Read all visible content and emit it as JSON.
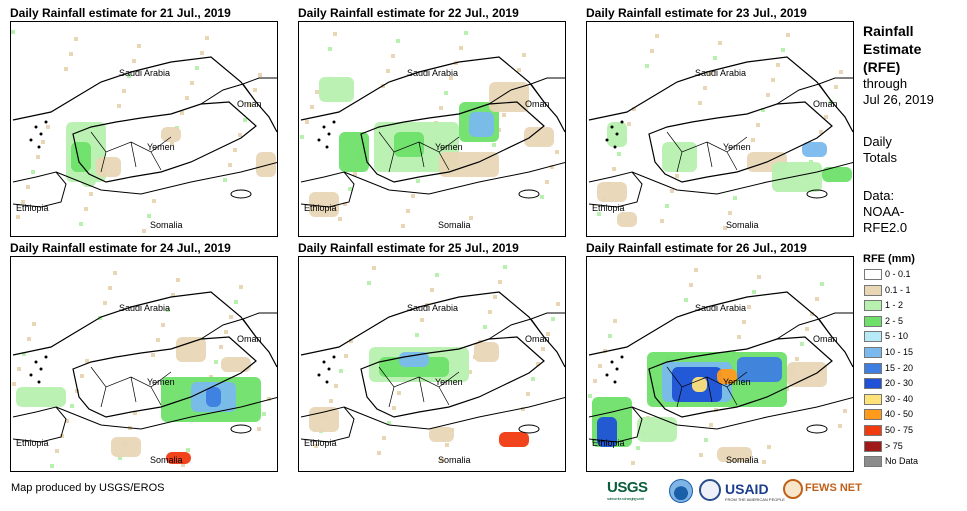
{
  "panels": [
    {
      "title": "Daily Rainfall estimate for 21 Jul., 2019",
      "rain_coverage": "light scattered over western Yemen highlands"
    },
    {
      "title": "Daily Rainfall estimate for 22 Jul., 2019",
      "rain_coverage": "widespread light-moderate over Yemen and southern Saudi Arabia"
    },
    {
      "title": "Daily Rainfall estimate for 23 Jul., 2019",
      "rain_coverage": "light over Yemen and eastern Yemen/Oman border"
    },
    {
      "title": "Daily Rainfall estimate for 24 Jul., 2019",
      "rain_coverage": "moderate over Gulf of Aden and northern Somalia"
    },
    {
      "title": "Daily Rainfall estimate for 25 Jul., 2019",
      "rain_coverage": "light-moderate over western Yemen"
    },
    {
      "title": "Daily Rainfall estimate for 26 Jul., 2019",
      "rain_coverage": "heavy over western/central Yemen and Ethiopia"
    }
  ],
  "map_labels": {
    "saudi": "Saudi Arabia",
    "oman": "Oman",
    "yemen": "Yemen",
    "ethiopia": "Ethiopia",
    "somalia": "Somalia"
  },
  "sidebar": {
    "title_line1": "Rainfall",
    "title_line2": "Estimate",
    "title_line3": "(RFE)",
    "through": "through",
    "date": "Jul 26, 2019",
    "daily1": "Daily",
    "daily2": "Totals",
    "data1": "Data:",
    "data2": "NOAA-",
    "data3": "RFE2.0"
  },
  "legend": {
    "title": "RFE (mm)",
    "items": [
      {
        "label": "0 - 0.1",
        "color": "#ffffff"
      },
      {
        "label": "0.1 - 1",
        "color": "#e8d6b5"
      },
      {
        "label": "1 - 2",
        "color": "#b8f0b0"
      },
      {
        "label": "2 - 5",
        "color": "#6ee06a"
      },
      {
        "label": "5 - 10",
        "color": "#b6eaf7"
      },
      {
        "label": "10 - 15",
        "color": "#7ab9ee"
      },
      {
        "label": "15 - 20",
        "color": "#3d7ee0"
      },
      {
        "label": "20 - 30",
        "color": "#1f52d6"
      },
      {
        "label": "30 - 40",
        "color": "#ffe27a"
      },
      {
        "label": "40 - 50",
        "color": "#ff9a1a"
      },
      {
        "label": "50 - 75",
        "color": "#f03a10"
      },
      {
        "label": "> 75",
        "color": "#a01a1a"
      },
      {
        "label": "No Data",
        "color": "#8c8c8c"
      }
    ]
  },
  "footer": {
    "credit": "Map produced by USGS/EROS",
    "logo_usgs": "USGS",
    "logo_usgs_tag": "science for a changing world",
    "logo_usaid": "USAID",
    "logo_usaid_tag": "FROM THE AMERICAN PEOPLE",
    "logo_fews": "FEWS NET"
  }
}
